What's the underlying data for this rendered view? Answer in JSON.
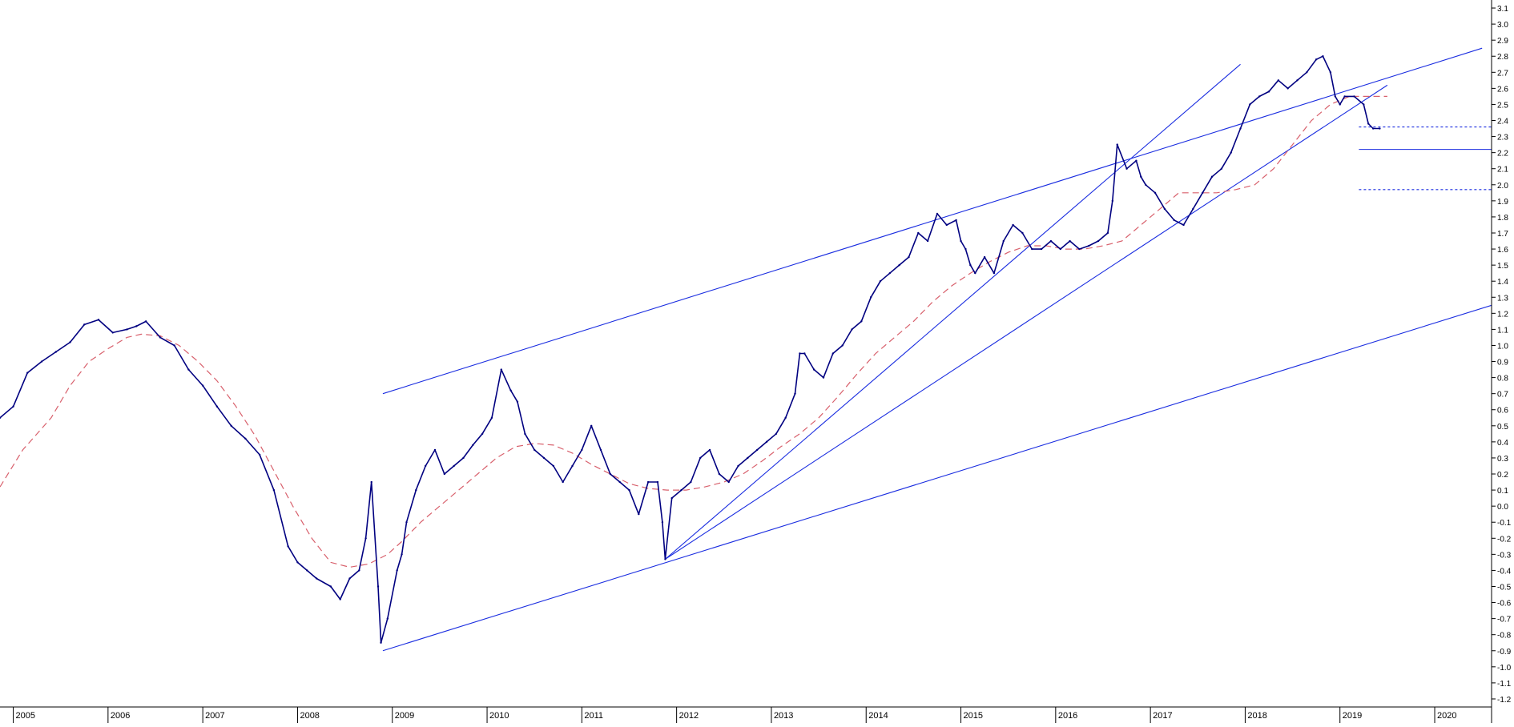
{
  "chart_data": {
    "type": "line",
    "title": "",
    "xlabel": "",
    "ylabel": "",
    "x_axis": {
      "labels": [
        "2005",
        "2006",
        "2007",
        "2008",
        "2009",
        "2010",
        "2011",
        "2012",
        "2013",
        "2014",
        "2015",
        "2016",
        "2017",
        "2018",
        "2019",
        "2020"
      ],
      "range": [
        2004.86,
        2020.6
      ]
    },
    "y_axis": {
      "labels": [
        "3.1",
        "3.0",
        "2.9",
        "2.8",
        "2.7",
        "2.6",
        "2.5",
        "2.4",
        "2.3",
        "2.2",
        "2.1",
        "2.0",
        "1.9",
        "1.8",
        "1.7",
        "1.6",
        "1.5",
        "1.4",
        "1.3",
        "1.2",
        "1.1",
        "1.0",
        "0.9",
        "0.8",
        "0.7",
        "0.6",
        "0.5",
        "0.4",
        "0.3",
        "0.2",
        "0.1",
        "0.0",
        "-0.1",
        "-0.2",
        "-0.3",
        "-0.4",
        "-0.5",
        "-0.6",
        "-0.7",
        "-0.8",
        "-0.9",
        "-1.0",
        "-1.1",
        "-1.2"
      ],
      "range": [
        -1.25,
        3.15
      ],
      "position": "right"
    },
    "grid": false,
    "series": [
      {
        "role": "price",
        "color": "#000080",
        "x": [
          2004.86,
          2005.0,
          2005.15,
          2005.3,
          2005.45,
          2005.6,
          2005.75,
          2005.9,
          2006.05,
          2006.2,
          2006.3,
          2006.4,
          2006.55,
          2006.7,
          2006.85,
          2007.0,
          2007.15,
          2007.3,
          2007.45,
          2007.6,
          2007.75,
          2007.9,
          2008.0,
          2008.1,
          2008.2,
          2008.35,
          2008.45,
          2008.55,
          2008.65,
          2008.72,
          2008.78,
          2008.85,
          2008.88,
          2008.95,
          2009.05,
          2009.1,
          2009.15,
          2009.25,
          2009.35,
          2009.45,
          2009.55,
          2009.65,
          2009.75,
          2009.85,
          2009.95,
          2010.05,
          2010.15,
          2010.25,
          2010.32,
          2010.4,
          2010.5,
          2010.6,
          2010.7,
          2010.8,
          2010.9,
          2011.0,
          2011.1,
          2011.2,
          2011.3,
          2011.4,
          2011.5,
          2011.6,
          2011.7,
          2011.8,
          2011.85,
          2011.88,
          2011.95,
          2012.05,
          2012.15,
          2012.25,
          2012.35,
          2012.45,
          2012.55,
          2012.65,
          2012.75,
          2012.85,
          2012.95,
          2013.05,
          2013.15,
          2013.25,
          2013.3,
          2013.35,
          2013.45,
          2013.55,
          2013.65,
          2013.75,
          2013.85,
          2013.95,
          2014.05,
          2014.15,
          2014.25,
          2014.35,
          2014.45,
          2014.55,
          2014.65,
          2014.75,
          2014.85,
          2014.95,
          2015.0,
          2015.05,
          2015.1,
          2015.15,
          2015.25,
          2015.35,
          2015.45,
          2015.55,
          2015.65,
          2015.75,
          2015.85,
          2015.95,
          2016.05,
          2016.15,
          2016.25,
          2016.35,
          2016.45,
          2016.55,
          2016.6,
          2016.65,
          2016.75,
          2016.85,
          2016.9,
          2016.95,
          2017.05,
          2017.15,
          2017.25,
          2017.35,
          2017.45,
          2017.55,
          2017.65,
          2017.75,
          2017.85,
          2017.95,
          2018.05,
          2018.15,
          2018.25,
          2018.35,
          2018.45,
          2018.55,
          2018.65,
          2018.75,
          2018.82,
          2018.9,
          2018.95,
          2019.0,
          2019.05,
          2019.15,
          2019.25,
          2019.3,
          2019.35,
          2019.42
        ],
        "y": [
          0.55,
          0.62,
          0.83,
          0.9,
          0.96,
          1.02,
          1.13,
          1.16,
          1.08,
          1.1,
          1.12,
          1.15,
          1.05,
          1.0,
          0.85,
          0.75,
          0.62,
          0.5,
          0.42,
          0.32,
          0.1,
          -0.25,
          -0.35,
          -0.4,
          -0.45,
          -0.5,
          -0.58,
          -0.45,
          -0.4,
          -0.2,
          0.15,
          -0.5,
          -0.85,
          -0.7,
          -0.4,
          -0.3,
          -0.1,
          0.1,
          0.25,
          0.35,
          0.2,
          0.25,
          0.3,
          0.38,
          0.45,
          0.55,
          0.85,
          0.72,
          0.65,
          0.45,
          0.35,
          0.3,
          0.25,
          0.15,
          0.25,
          0.35,
          0.5,
          0.35,
          0.2,
          0.15,
          0.1,
          -0.05,
          0.15,
          0.15,
          -0.1,
          -0.33,
          0.05,
          0.1,
          0.15,
          0.3,
          0.35,
          0.2,
          0.15,
          0.25,
          0.3,
          0.35,
          0.4,
          0.45,
          0.55,
          0.7,
          0.95,
          0.95,
          0.85,
          0.8,
          0.95,
          1.0,
          1.1,
          1.15,
          1.3,
          1.4,
          1.45,
          1.5,
          1.55,
          1.7,
          1.65,
          1.82,
          1.75,
          1.78,
          1.65,
          1.6,
          1.5,
          1.45,
          1.55,
          1.45,
          1.65,
          1.75,
          1.7,
          1.6,
          1.6,
          1.65,
          1.6,
          1.65,
          1.6,
          1.62,
          1.65,
          1.7,
          1.9,
          2.25,
          2.1,
          2.15,
          2.05,
          2.0,
          1.95,
          1.85,
          1.78,
          1.75,
          1.85,
          1.95,
          2.05,
          2.1,
          2.2,
          2.35,
          2.5,
          2.55,
          2.58,
          2.65,
          2.6,
          2.65,
          2.7,
          2.78,
          2.8,
          2.7,
          2.55,
          2.5,
          2.55,
          2.55,
          2.5,
          2.38,
          2.35,
          2.35
        ]
      },
      {
        "role": "moving-average",
        "color": "#d8606c",
        "x": [
          2004.86,
          2005.1,
          2005.4,
          2005.6,
          2005.8,
          2006.0,
          2006.2,
          2006.35,
          2006.55,
          2006.75,
          2006.95,
          2007.15,
          2007.35,
          2007.55,
          2007.75,
          2007.95,
          2008.15,
          2008.35,
          2008.55,
          2008.75,
          2008.95,
          2009.1,
          2009.3,
          2009.5,
          2009.7,
          2009.9,
          2010.1,
          2010.3,
          2010.5,
          2010.7,
          2010.9,
          2011.1,
          2011.3,
          2011.5,
          2011.7,
          2011.9,
          2012.1,
          2012.3,
          2012.5,
          2012.7,
          2012.9,
          2013.1,
          2013.3,
          2013.5,
          2013.7,
          2013.9,
          2014.1,
          2014.3,
          2014.5,
          2014.7,
          2014.9,
          2015.1,
          2015.3,
          2015.5,
          2015.7,
          2015.9,
          2016.1,
          2016.3,
          2016.5,
          2016.7,
          2016.9,
          2017.1,
          2017.3,
          2017.5,
          2017.7,
          2017.9,
          2018.1,
          2018.3,
          2018.5,
          2018.7,
          2018.9,
          2019.1,
          2019.3,
          2019.5
        ],
        "y": [
          0.12,
          0.35,
          0.55,
          0.75,
          0.9,
          0.98,
          1.05,
          1.07,
          1.06,
          1.0,
          0.9,
          0.78,
          0.62,
          0.44,
          0.22,
          0.0,
          -0.2,
          -0.35,
          -0.38,
          -0.36,
          -0.3,
          -0.22,
          -0.1,
          0.0,
          0.1,
          0.2,
          0.3,
          0.37,
          0.39,
          0.38,
          0.33,
          0.26,
          0.2,
          0.14,
          0.11,
          0.1,
          0.1,
          0.12,
          0.15,
          0.2,
          0.28,
          0.37,
          0.45,
          0.55,
          0.68,
          0.82,
          0.95,
          1.05,
          1.15,
          1.27,
          1.37,
          1.45,
          1.52,
          1.58,
          1.62,
          1.62,
          1.6,
          1.6,
          1.62,
          1.65,
          1.75,
          1.85,
          1.95,
          1.95,
          1.95,
          1.97,
          2.0,
          2.1,
          2.25,
          2.4,
          2.5,
          2.55,
          2.55,
          2.55
        ]
      }
    ],
    "trend_lines": [
      {
        "style": "solid",
        "color": "#1a2de0",
        "x": [
          2008.9,
          2020.6
        ],
        "y": [
          -0.9,
          1.25
        ]
      },
      {
        "style": "solid",
        "color": "#1a2de0",
        "x": [
          2008.9,
          2020.5
        ],
        "y": [
          0.7,
          2.85
        ]
      },
      {
        "style": "solid",
        "color": "#1a2de0",
        "x": [
          2011.88,
          2019.5
        ],
        "y": [
          -0.33,
          2.62
        ]
      },
      {
        "style": "solid",
        "color": "#1a2de0",
        "x": [
          2011.88,
          2017.95
        ],
        "y": [
          -0.33,
          2.75
        ]
      }
    ],
    "levels": [
      {
        "style": "dotted",
        "color": "#1a2de0",
        "value": 2.36,
        "from_x": 2019.2
      },
      {
        "style": "solid",
        "color": "#1a2de0",
        "value": 2.22,
        "from_x": 2019.2
      },
      {
        "style": "dotted",
        "color": "#1a2de0",
        "value": 1.97,
        "from_x": 2019.2
      }
    ]
  }
}
